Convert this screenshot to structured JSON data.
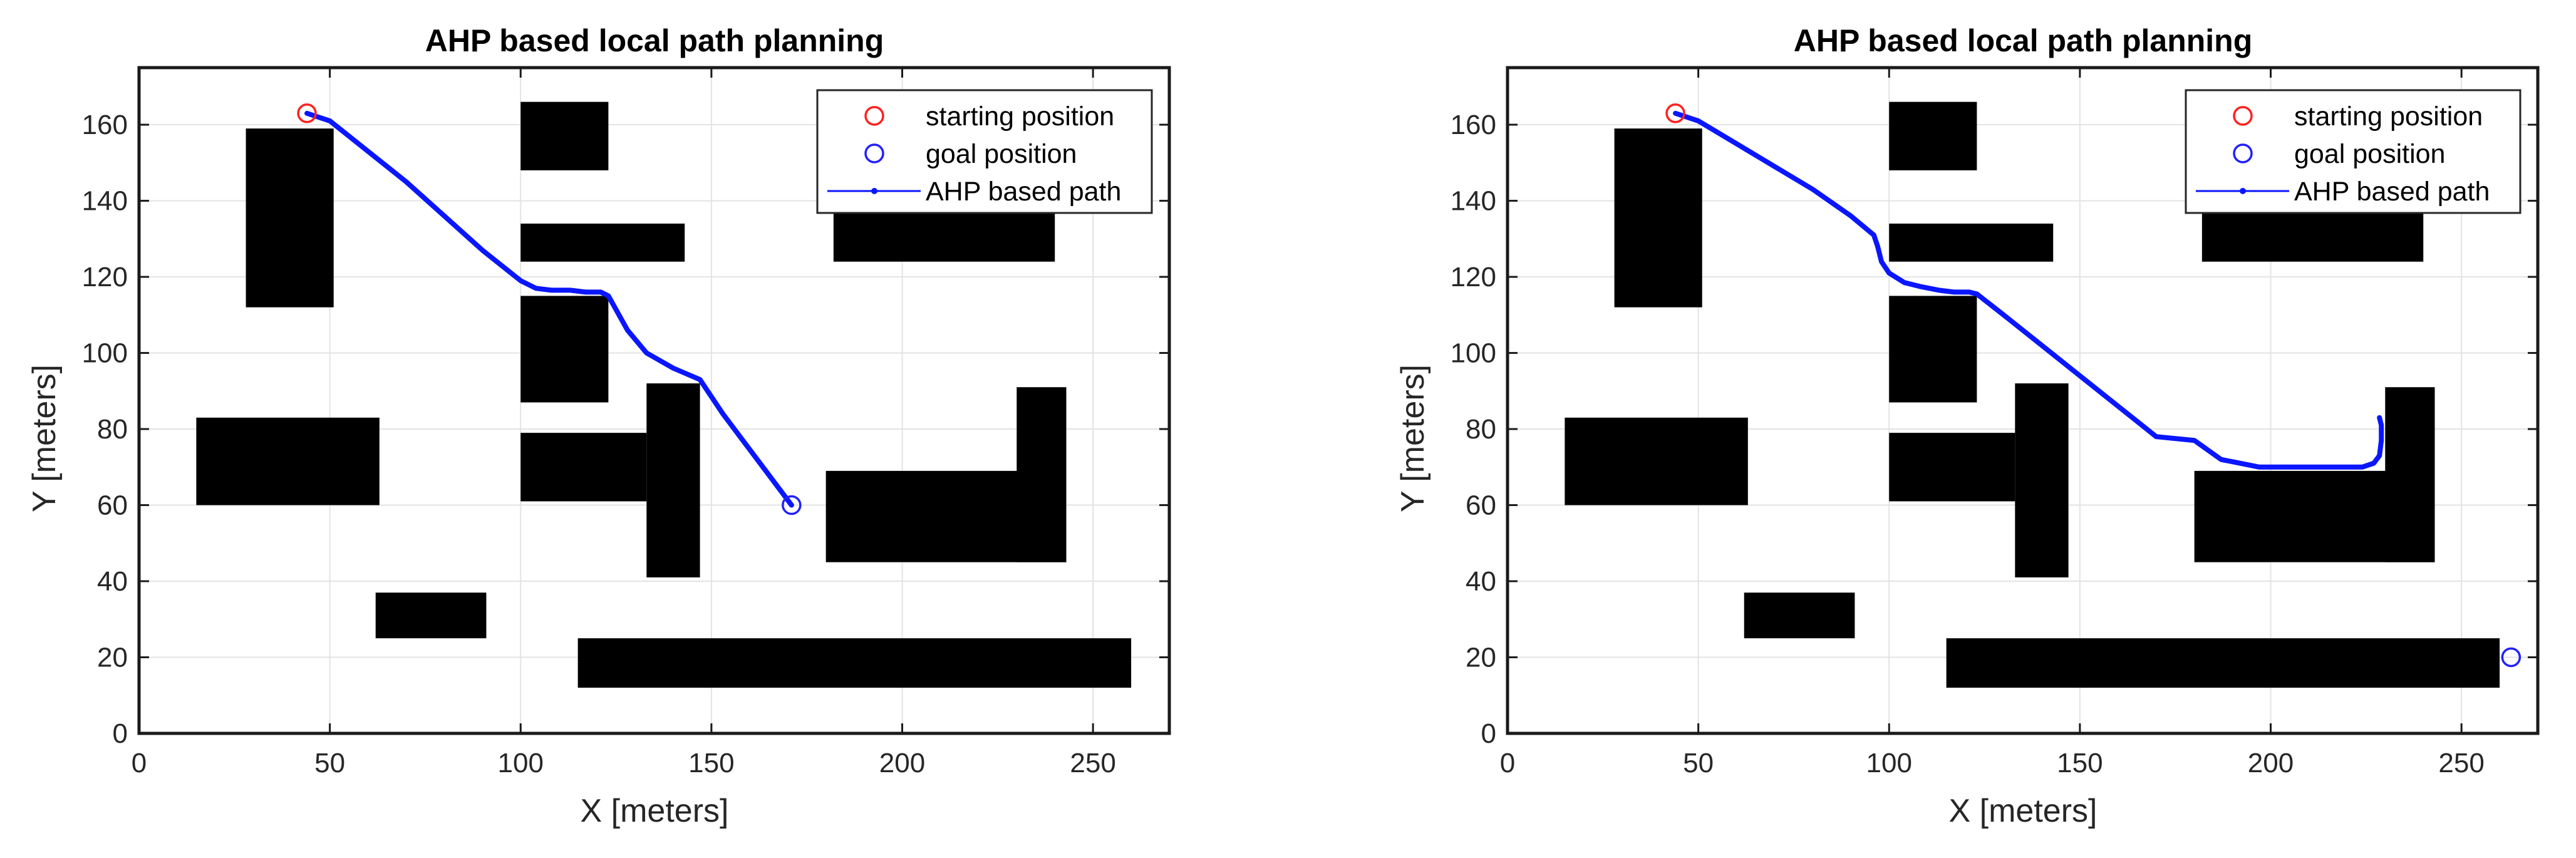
{
  "chart_data": [
    {
      "type": "scatter",
      "title": "AHP based local path planning",
      "xlabel": "X [meters]",
      "ylabel": "Y [meters]",
      "xlim": [
        0,
        270
      ],
      "ylim": [
        0,
        175
      ],
      "xticks": [
        0,
        50,
        100,
        150,
        200,
        250
      ],
      "yticks": [
        0,
        20,
        40,
        60,
        80,
        100,
        120,
        140,
        160
      ],
      "grid": true,
      "legend_position": "top-right",
      "legend": [
        "starting position",
        "goal position",
        "AHP based path"
      ],
      "colors": {
        "start": "#ff2020",
        "goal": "#2020ff",
        "path": "#0a16ff",
        "obstacle": "#000000"
      },
      "obstacles": [
        {
          "x": [
            28,
            51
          ],
          "y": [
            112,
            159
          ]
        },
        {
          "x": [
            100,
            123
          ],
          "y": [
            148,
            166
          ]
        },
        {
          "x": [
            100,
            143
          ],
          "y": [
            124,
            134
          ]
        },
        {
          "x": [
            100,
            123
          ],
          "y": [
            87,
            115
          ]
        },
        {
          "x": [
            15,
            63
          ],
          "y": [
            60,
            83
          ]
        },
        {
          "x": [
            100,
            133
          ],
          "y": [
            61,
            79
          ]
        },
        {
          "x": [
            133,
            147
          ],
          "y": [
            41,
            92
          ]
        },
        {
          "x": [
            62,
            91
          ],
          "y": [
            25,
            37
          ]
        },
        {
          "x": [
            115,
            260
          ],
          "y": [
            12,
            25
          ]
        },
        {
          "x": [
            182,
            240
          ],
          "y": [
            124,
            138
          ]
        },
        {
          "x": [
            180,
            243
          ],
          "y": [
            45,
            69
          ]
        },
        {
          "x": [
            230,
            243
          ],
          "y": [
            45,
            91
          ]
        }
      ],
      "start": {
        "x": 44,
        "y": 163
      },
      "goal": {
        "x": 171,
        "y": 60
      },
      "series": [
        {
          "name": "AHP based path",
          "x": [
            44,
            47,
            50,
            60,
            70,
            80,
            90,
            100,
            104,
            108,
            113,
            117,
            121,
            123,
            128,
            133,
            140,
            147,
            153,
            159,
            165,
            171
          ],
          "y": [
            163,
            162,
            161,
            153,
            145,
            136,
            127,
            119,
            117,
            116.5,
            116.5,
            116,
            116,
            115,
            106,
            100,
            96,
            93,
            84,
            76,
            68,
            60
          ]
        }
      ]
    },
    {
      "type": "scatter",
      "title": "AHP based local path planning",
      "xlabel": "X [meters]",
      "ylabel": "Y [meters]",
      "xlim": [
        0,
        270
      ],
      "ylim": [
        0,
        175
      ],
      "xticks": [
        0,
        50,
        100,
        150,
        200,
        250
      ],
      "yticks": [
        0,
        20,
        40,
        60,
        80,
        100,
        120,
        140,
        160
      ],
      "grid": true,
      "legend_position": "top-right",
      "legend": [
        "starting position",
        "goal position",
        "AHP based path"
      ],
      "colors": {
        "start": "#ff2020",
        "goal": "#2020ff",
        "path": "#0a16ff",
        "obstacle": "#000000"
      },
      "obstacles": [
        {
          "x": [
            28,
            51
          ],
          "y": [
            112,
            159
          ]
        },
        {
          "x": [
            100,
            123
          ],
          "y": [
            148,
            166
          ]
        },
        {
          "x": [
            100,
            143
          ],
          "y": [
            124,
            134
          ]
        },
        {
          "x": [
            100,
            123
          ],
          "y": [
            87,
            115
          ]
        },
        {
          "x": [
            15,
            63
          ],
          "y": [
            60,
            83
          ]
        },
        {
          "x": [
            100,
            133
          ],
          "y": [
            61,
            79
          ]
        },
        {
          "x": [
            133,
            147
          ],
          "y": [
            41,
            92
          ]
        },
        {
          "x": [
            62,
            91
          ],
          "y": [
            25,
            37
          ]
        },
        {
          "x": [
            115,
            260
          ],
          "y": [
            12,
            25
          ]
        },
        {
          "x": [
            182,
            240
          ],
          "y": [
            124,
            138
          ]
        },
        {
          "x": [
            180,
            243
          ],
          "y": [
            45,
            69
          ]
        },
        {
          "x": [
            230,
            243
          ],
          "y": [
            45,
            91
          ]
        }
      ],
      "start": {
        "x": 44,
        "y": 163
      },
      "goal": {
        "x": 263,
        "y": 20
      },
      "series": [
        {
          "name": "AHP based path",
          "x": [
            44,
            47,
            50,
            60,
            70,
            80,
            90,
            96,
            97,
            98,
            100,
            104,
            108,
            113,
            117,
            121,
            123,
            130,
            140,
            150,
            160,
            170,
            180,
            187,
            192,
            197,
            203,
            210,
            218,
            224,
            227,
            228.5,
            229,
            229,
            228.5
          ],
          "y": [
            163,
            162,
            161,
            155,
            149,
            143,
            136,
            131,
            128,
            124,
            121,
            118.5,
            117.5,
            116.5,
            116,
            116,
            115.5,
            110,
            102,
            94,
            86,
            78,
            77,
            72,
            71,
            70,
            70,
            70,
            70,
            70,
            71,
            73,
            77,
            81,
            83
          ]
        }
      ]
    }
  ]
}
